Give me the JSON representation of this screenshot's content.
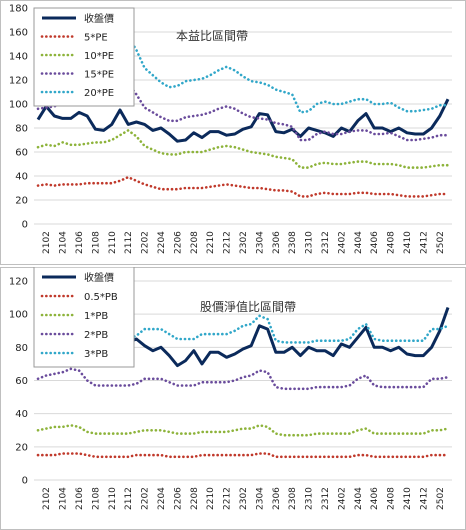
{
  "chart_data": [
    {
      "type": "line",
      "title": "本益比區間帶",
      "ylim": [
        0,
        180
      ],
      "yticks": [
        0,
        20,
        40,
        60,
        80,
        100,
        120,
        140,
        160,
        180
      ],
      "grid": true,
      "legend_position": "top-left",
      "x": [
        "2101",
        "2102",
        "2103",
        "2104",
        "2105",
        "2106",
        "2107",
        "2108",
        "2109",
        "2110",
        "2111",
        "2112",
        "2201",
        "2202",
        "2203",
        "2204",
        "2205",
        "2206",
        "2207",
        "2208",
        "2209",
        "2210",
        "2211",
        "2212",
        "2301",
        "2302",
        "2303",
        "2304",
        "2305",
        "2306",
        "2307",
        "2308",
        "2309",
        "2310",
        "2311",
        "2312",
        "2401",
        "2402",
        "2403",
        "2404",
        "2405",
        "2406",
        "2407",
        "2408",
        "2409",
        "2410",
        "2411",
        "2412",
        "2501",
        "2502",
        "2503"
      ],
      "x_labels": [
        "2102",
        "2104",
        "2106",
        "2108",
        "2110",
        "2112",
        "2202",
        "2204",
        "2206",
        "2208",
        "2210",
        "2212",
        "2302",
        "2304",
        "2306",
        "2308",
        "2310",
        "2312",
        "2402",
        "2404",
        "2406",
        "2408",
        "2410",
        "2412",
        "2502"
      ],
      "series": [
        {
          "name": "收盤價",
          "style": "solid",
          "color": "#0b2a5b",
          "values": [
            87,
            98,
            90,
            88,
            88,
            93,
            90,
            79,
            78,
            83,
            95,
            83,
            85,
            83,
            78,
            80,
            75,
            69,
            70,
            76,
            72,
            77,
            77,
            74,
            75,
            79,
            81,
            92,
            91,
            77,
            76,
            79,
            73,
            80,
            78,
            76,
            73,
            80,
            77,
            86,
            92,
            80,
            80,
            77,
            80,
            76,
            75,
            75,
            80,
            90,
            104
          ]
        },
        {
          "name": "5*PE",
          "style": "dotted",
          "color": "#c0392b",
          "values": [
            32,
            33,
            32,
            33,
            33,
            33,
            34,
            34,
            34,
            34,
            36,
            39,
            36,
            33,
            31,
            29,
            29,
            29,
            30,
            30,
            30,
            31,
            32,
            33,
            32,
            31,
            30,
            30,
            29,
            28,
            28,
            27,
            23,
            23,
            25,
            26,
            25,
            25,
            25,
            26,
            26,
            25,
            25,
            25,
            24,
            23,
            23,
            23,
            24,
            25,
            25
          ]
        },
        {
          "name": "10*PE",
          "style": "dotted",
          "color": "#8db33a",
          "values": [
            64,
            66,
            65,
            68,
            66,
            66,
            67,
            68,
            68,
            70,
            74,
            78,
            73,
            65,
            62,
            59,
            58,
            58,
            60,
            60,
            60,
            62,
            64,
            65,
            64,
            62,
            60,
            59,
            58,
            56,
            55,
            54,
            47,
            47,
            50,
            51,
            50,
            50,
            51,
            52,
            52,
            50,
            50,
            50,
            49,
            47,
            47,
            47,
            48,
            49,
            49
          ]
        },
        {
          "name": "15*PE",
          "style": "dotted",
          "color": "#6a4c9c",
          "values": [
            96,
            97,
            98,
            101,
            99,
            100,
            101,
            101,
            101,
            104,
            112,
            117,
            108,
            97,
            93,
            89,
            86,
            86,
            89,
            90,
            91,
            93,
            96,
            98,
            96,
            92,
            89,
            88,
            87,
            84,
            83,
            81,
            70,
            70,
            75,
            77,
            75,
            75,
            77,
            78,
            78,
            75,
            75,
            76,
            73,
            70,
            70,
            71,
            72,
            74,
            74
          ]
        },
        {
          "name": "20*PE",
          "style": "dotted",
          "color": "#31a7c9",
          "values": [
            128,
            130,
            131,
            135,
            132,
            133,
            135,
            135,
            135,
            139,
            149,
            156,
            145,
            130,
            124,
            118,
            114,
            115,
            119,
            120,
            121,
            124,
            128,
            131,
            128,
            123,
            119,
            118,
            116,
            112,
            110,
            108,
            93,
            94,
            100,
            102,
            100,
            100,
            102,
            104,
            104,
            100,
            100,
            101,
            97,
            94,
            94,
            95,
            96,
            99,
            99
          ]
        }
      ]
    },
    {
      "type": "line",
      "title": "股價淨值比區間帶",
      "ylim": [
        0,
        120
      ],
      "yticks": [
        0,
        20,
        40,
        60,
        80,
        100,
        120
      ],
      "grid": true,
      "legend_position": "top-left",
      "x": [
        "2101",
        "2102",
        "2103",
        "2104",
        "2105",
        "2106",
        "2107",
        "2108",
        "2109",
        "2110",
        "2111",
        "2112",
        "2201",
        "2202",
        "2203",
        "2204",
        "2205",
        "2206",
        "2207",
        "2208",
        "2209",
        "2210",
        "2211",
        "2212",
        "2301",
        "2302",
        "2303",
        "2304",
        "2305",
        "2306",
        "2307",
        "2308",
        "2309",
        "2310",
        "2311",
        "2312",
        "2401",
        "2402",
        "2403",
        "2404",
        "2405",
        "2406",
        "2407",
        "2408",
        "2409",
        "2410",
        "2411",
        "2412",
        "2501",
        "2502",
        "2503"
      ],
      "x_labels": [
        "2102",
        "2104",
        "2106",
        "2108",
        "2110",
        "2112",
        "2202",
        "2204",
        "2206",
        "2208",
        "2210",
        "2212",
        "2302",
        "2304",
        "2306",
        "2308",
        "2310",
        "2312",
        "2402",
        "2404",
        "2406",
        "2408",
        "2410",
        "2412",
        "2502"
      ],
      "series": [
        {
          "name": "收盤價",
          "style": "solid",
          "color": "#0b2a5b",
          "values": [
            87,
            98,
            90,
            88,
            88,
            93,
            90,
            79,
            78,
            83,
            95,
            83,
            85,
            81,
            78,
            80,
            75,
            69,
            72,
            78,
            70,
            77,
            77,
            74,
            76,
            79,
            81,
            93,
            91,
            77,
            77,
            80,
            75,
            80,
            78,
            78,
            75,
            82,
            80,
            86,
            92,
            80,
            80,
            78,
            80,
            76,
            75,
            75,
            80,
            90,
            104
          ]
        },
        {
          "name": "0.5*PB",
          "style": "dotted",
          "color": "#c0392b",
          "values": [
            15,
            15,
            15,
            16,
            16,
            16,
            15,
            14,
            14,
            14,
            14,
            14,
            15,
            15,
            15,
            15,
            14,
            14,
            14,
            14,
            15,
            15,
            15,
            15,
            15,
            15,
            15,
            16,
            16,
            14,
            14,
            14,
            14,
            14,
            14,
            14,
            14,
            14,
            14,
            15,
            15,
            14,
            14,
            14,
            14,
            14,
            14,
            14,
            15,
            15,
            15
          ]
        },
        {
          "name": "1*PB",
          "style": "dotted",
          "color": "#8db33a",
          "values": [
            30,
            31,
            32,
            32,
            33,
            32,
            29,
            28,
            28,
            28,
            28,
            28,
            29,
            30,
            30,
            30,
            29,
            28,
            28,
            28,
            29,
            29,
            29,
            29,
            30,
            31,
            31,
            33,
            32,
            28,
            27,
            27,
            27,
            27,
            28,
            28,
            28,
            28,
            28,
            30,
            31,
            28,
            28,
            28,
            28,
            28,
            28,
            28,
            30,
            30,
            31
          ]
        },
        {
          "name": "2*PB",
          "style": "dotted",
          "color": "#6a4c9c",
          "values": [
            61,
            63,
            64,
            65,
            67,
            66,
            60,
            57,
            57,
            57,
            57,
            57,
            58,
            61,
            61,
            61,
            59,
            57,
            57,
            57,
            59,
            59,
            59,
            59,
            60,
            62,
            63,
            66,
            65,
            56,
            55,
            55,
            55,
            55,
            56,
            56,
            56,
            56,
            57,
            61,
            63,
            57,
            56,
            56,
            56,
            56,
            56,
            56,
            61,
            61,
            62
          ]
        },
        {
          "name": "3*PB",
          "style": "dotted",
          "color": "#31a7c9",
          "values": [
            91,
            94,
            96,
            97,
            100,
            98,
            90,
            85,
            85,
            85,
            85,
            85,
            87,
            91,
            91,
            91,
            88,
            85,
            85,
            85,
            88,
            88,
            88,
            88,
            90,
            93,
            94,
            99,
            97,
            84,
            83,
            83,
            83,
            83,
            84,
            84,
            84,
            84,
            85,
            91,
            94,
            85,
            84,
            84,
            84,
            84,
            84,
            84,
            91,
            91,
            93
          ]
        }
      ]
    }
  ]
}
